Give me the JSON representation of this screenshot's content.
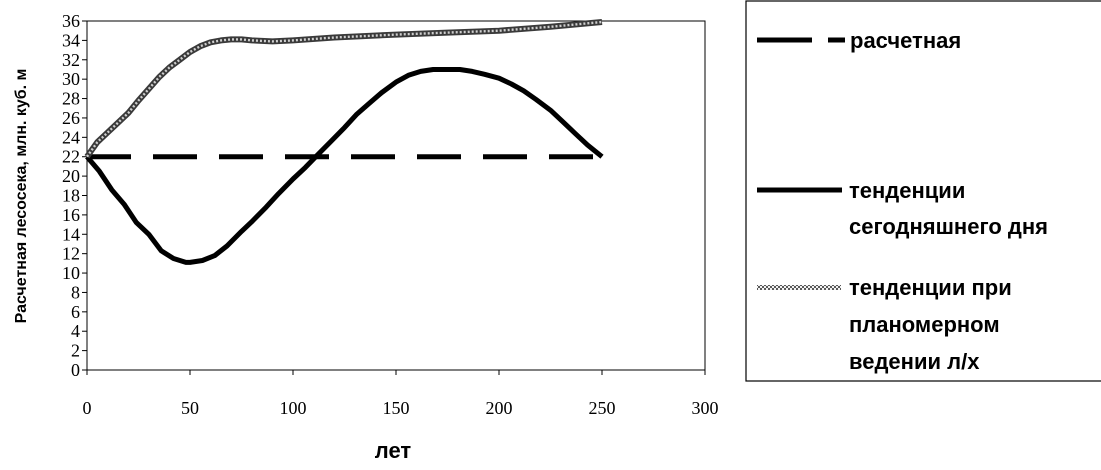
{
  "chart_data": {
    "type": "line",
    "xlabel": "лет",
    "ylabel": "Расчетная лесосека, млн. куб. м",
    "xlim": [
      0,
      300
    ],
    "ylim": [
      0,
      36
    ],
    "xticks": [
      0,
      50,
      100,
      150,
      200,
      250,
      300
    ],
    "yticks": [
      0,
      2,
      4,
      6,
      8,
      10,
      12,
      14,
      16,
      18,
      20,
      22,
      24,
      26,
      28,
      30,
      32,
      34,
      36
    ],
    "grid": false,
    "legend_position": "right",
    "series": [
      {
        "name": "расчетная",
        "style": "dashed",
        "color": "#000000",
        "x": [
          0,
          250
        ],
        "y": [
          22,
          22
        ]
      },
      {
        "name": "тенденции сегодняшнего дня",
        "style": "solid",
        "color": "#000000",
        "x": [
          0,
          6,
          12,
          18,
          24,
          30,
          36,
          42,
          48,
          50,
          56,
          62,
          68,
          75,
          80,
          87,
          93,
          100,
          106,
          112,
          118,
          125,
          131,
          137,
          143,
          150,
          156,
          162,
          168,
          175,
          181,
          187,
          193,
          200,
          206,
          212,
          218,
          225,
          231,
          237,
          243,
          250
        ],
        "y": [
          22,
          20.5,
          18.6,
          17.1,
          15.2,
          14,
          12.3,
          11.5,
          11.1,
          11.1,
          11.3,
          11.8,
          12.8,
          14.3,
          15.3,
          16.8,
          18.2,
          19.7,
          20.9,
          22.2,
          23.5,
          25,
          26.4,
          27.5,
          28.6,
          29.7,
          30.4,
          30.8,
          31,
          31,
          31,
          30.8,
          30.5,
          30.1,
          29.5,
          28.8,
          27.9,
          26.8,
          25.6,
          24.4,
          23.2,
          22
        ]
      },
      {
        "name": "тенденции при планомерном ведении л/х",
        "style": "textured",
        "color": "#8c8c8c",
        "x": [
          0,
          5,
          10,
          15,
          20,
          25,
          30,
          35,
          40,
          45,
          50,
          55,
          60,
          65,
          70,
          75,
          80,
          90,
          100,
          120,
          150,
          175,
          200,
          225,
          250
        ],
        "y": [
          22,
          23.5,
          24.5,
          25.5,
          26.5,
          27.8,
          29,
          30.2,
          31.2,
          32,
          32.8,
          33.4,
          33.8,
          34,
          34.1,
          34.1,
          34,
          33.9,
          34,
          34.3,
          34.6,
          34.8,
          35,
          35.4,
          35.9
        ]
      }
    ]
  }
}
